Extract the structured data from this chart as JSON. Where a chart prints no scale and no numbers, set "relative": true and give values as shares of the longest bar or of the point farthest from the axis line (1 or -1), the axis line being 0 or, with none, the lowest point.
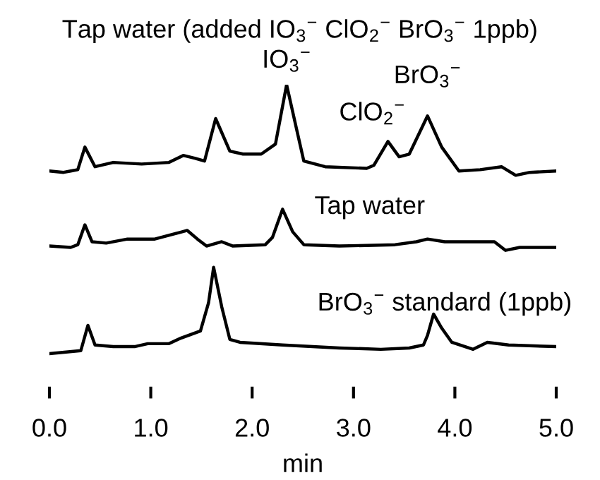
{
  "chart_data": {
    "type": "line",
    "relative": true,
    "xlabel": "min",
    "xlim": [
      0,
      5
    ],
    "xticks": [
      {
        "value": 0,
        "label": "0.0"
      },
      {
        "value": 1,
        "label": "1.0"
      },
      {
        "value": 2,
        "label": "2.0"
      },
      {
        "value": 3,
        "label": "3.0"
      },
      {
        "value": 4,
        "label": "4.0"
      },
      {
        "value": 5,
        "label": "5.0"
      }
    ],
    "grid": false,
    "legend": false,
    "marker": "none",
    "line_style": "solid",
    "series": [
      {
        "name": "Tap water (added IO$_{3}$$^{−}$ ClO$_{2}$$^{−}$ BrO$_{3}$$^{−}$ 1ppb)",
        "color": "#000000",
        "x": [
          0,
          0.14,
          0.21,
          0.28,
          0.35,
          0.45,
          0.63,
          0.91,
          1.18,
          1.32,
          1.44,
          1.53,
          1.64,
          1.78,
          1.91,
          2.09,
          2.23,
          2.34,
          2.44,
          2.51,
          2.72,
          3.13,
          3.2,
          3.34,
          3.45,
          3.55,
          3.73,
          3.87,
          4.04,
          4.25,
          4.46,
          4.6,
          4.74,
          5.0
        ],
        "values": [
          0.679,
          0.674,
          0.679,
          0.684,
          0.768,
          0.695,
          0.711,
          0.705,
          0.711,
          0.737,
          0.726,
          0.716,
          0.874,
          0.753,
          0.742,
          0.742,
          0.779,
          1.0,
          0.832,
          0.716,
          0.695,
          0.689,
          0.7,
          0.789,
          0.732,
          0.742,
          0.884,
          0.768,
          0.679,
          0.684,
          0.695,
          0.663,
          0.674,
          0.679
        ]
      },
      {
        "name": "Tap water",
        "color": "#000000",
        "x": [
          0,
          0.21,
          0.28,
          0.35,
          0.42,
          0.56,
          0.77,
          1.04,
          1.25,
          1.36,
          1.46,
          1.55,
          1.7,
          1.81,
          2.13,
          2.2,
          2.3,
          2.4,
          2.51,
          2.86,
          3.41,
          3.62,
          3.73,
          3.9,
          4.39,
          4.5,
          4.64,
          5.0
        ],
        "values": [
          0.4,
          0.395,
          0.405,
          0.479,
          0.416,
          0.411,
          0.426,
          0.426,
          0.447,
          0.458,
          0.426,
          0.4,
          0.416,
          0.4,
          0.405,
          0.432,
          0.537,
          0.453,
          0.405,
          0.4,
          0.405,
          0.416,
          0.426,
          0.416,
          0.416,
          0.384,
          0.395,
          0.395
        ]
      },
      {
        "name": "BrO$_{3}$$^{−}$ standard (1ppb)",
        "color": "#000000",
        "x": [
          0,
          0.31,
          0.38,
          0.45,
          0.63,
          0.84,
          0.97,
          1.18,
          1.3,
          1.49,
          1.57,
          1.62,
          1.7,
          1.78,
          1.88,
          2.3,
          2.86,
          3.27,
          3.55,
          3.69,
          3.73,
          3.79,
          3.87,
          3.97,
          4.18,
          4.32,
          4.53,
          5.0
        ],
        "values": [
          0,
          0.011,
          0.105,
          0.032,
          0.026,
          0.026,
          0.037,
          0.037,
          0.058,
          0.084,
          0.189,
          0.321,
          0.174,
          0.053,
          0.042,
          0.032,
          0.021,
          0.016,
          0.021,
          0.032,
          0.068,
          0.147,
          0.095,
          0.042,
          0.016,
          0.042,
          0.032,
          0.026
        ]
      }
    ],
    "annotations": [
      {
        "text": "IO$_{3}$$^{−}$",
        "x": 2.34,
        "y": 1.0
      },
      {
        "text": "ClO$_{2}$$^{−}$",
        "x": 3.34,
        "y": 0.789
      },
      {
        "text": "BrO$_{3}$$^{−}$",
        "x": 3.73,
        "y": 0.884
      }
    ]
  }
}
